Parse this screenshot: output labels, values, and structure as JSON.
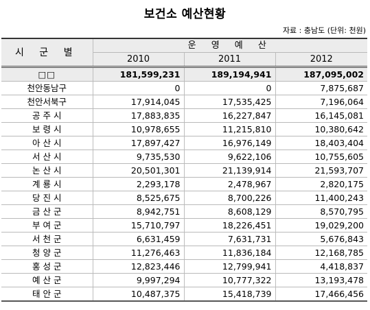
{
  "title": "보건소 예산현황",
  "source": "자료 : 충남도  (단위: 천원)",
  "table": {
    "region_header": "시 군 별",
    "operation_header": "운 영 예 산",
    "years": [
      "2010",
      "2011",
      "2012"
    ],
    "total": {
      "label": "□□",
      "values": [
        "181,599,231",
        "189,194,941",
        "187,095,002"
      ]
    },
    "rows": [
      {
        "region": "천안동남구",
        "values": [
          "0",
          "0",
          "7,875,687"
        ]
      },
      {
        "region": "천안서북구",
        "values": [
          "17,914,045",
          "17,535,425",
          "7,196,064"
        ]
      },
      {
        "region": "공 주 시",
        "values": [
          "17,883,835",
          "16,227,847",
          "16,145,081"
        ]
      },
      {
        "region": "보 령 시",
        "values": [
          "10,978,655",
          "11,215,810",
          "10,380,642"
        ]
      },
      {
        "region": "아 산 시",
        "values": [
          "17,897,427",
          "16,976,149",
          "18,403,404"
        ]
      },
      {
        "region": "서 산 시",
        "values": [
          "9,735,530",
          "9,622,106",
          "10,755,605"
        ]
      },
      {
        "region": "논 산 시",
        "values": [
          "20,501,301",
          "21,139,914",
          "21,593,707"
        ]
      },
      {
        "region": "계 룡 시",
        "values": [
          "2,293,178",
          "2,478,967",
          "2,820,175"
        ]
      },
      {
        "region": "당 진 시",
        "values": [
          "8,525,675",
          "8,700,226",
          "11,400,243"
        ]
      },
      {
        "region": "금 산 군",
        "values": [
          "8,942,751",
          "8,608,129",
          "8,570,795"
        ]
      },
      {
        "region": "부 여 군",
        "values": [
          "15,710,797",
          "18,226,451",
          "19,029,200"
        ]
      },
      {
        "region": "서 천 군",
        "values": [
          "6,631,459",
          "7,631,731",
          "5,676,843"
        ]
      },
      {
        "region": "청 양 군",
        "values": [
          "11,276,463",
          "11,836,184",
          "12,168,785"
        ]
      },
      {
        "region": "홍 성 군",
        "values": [
          "12,823,446",
          "12,799,941",
          "4,418,837"
        ]
      },
      {
        "region": "예 산 군",
        "values": [
          "9,997,294",
          "10,777,322",
          "13,193,478"
        ]
      },
      {
        "region": "태 안 군",
        "values": [
          "10,487,375",
          "15,418,739",
          "17,466,456"
        ]
      }
    ]
  }
}
